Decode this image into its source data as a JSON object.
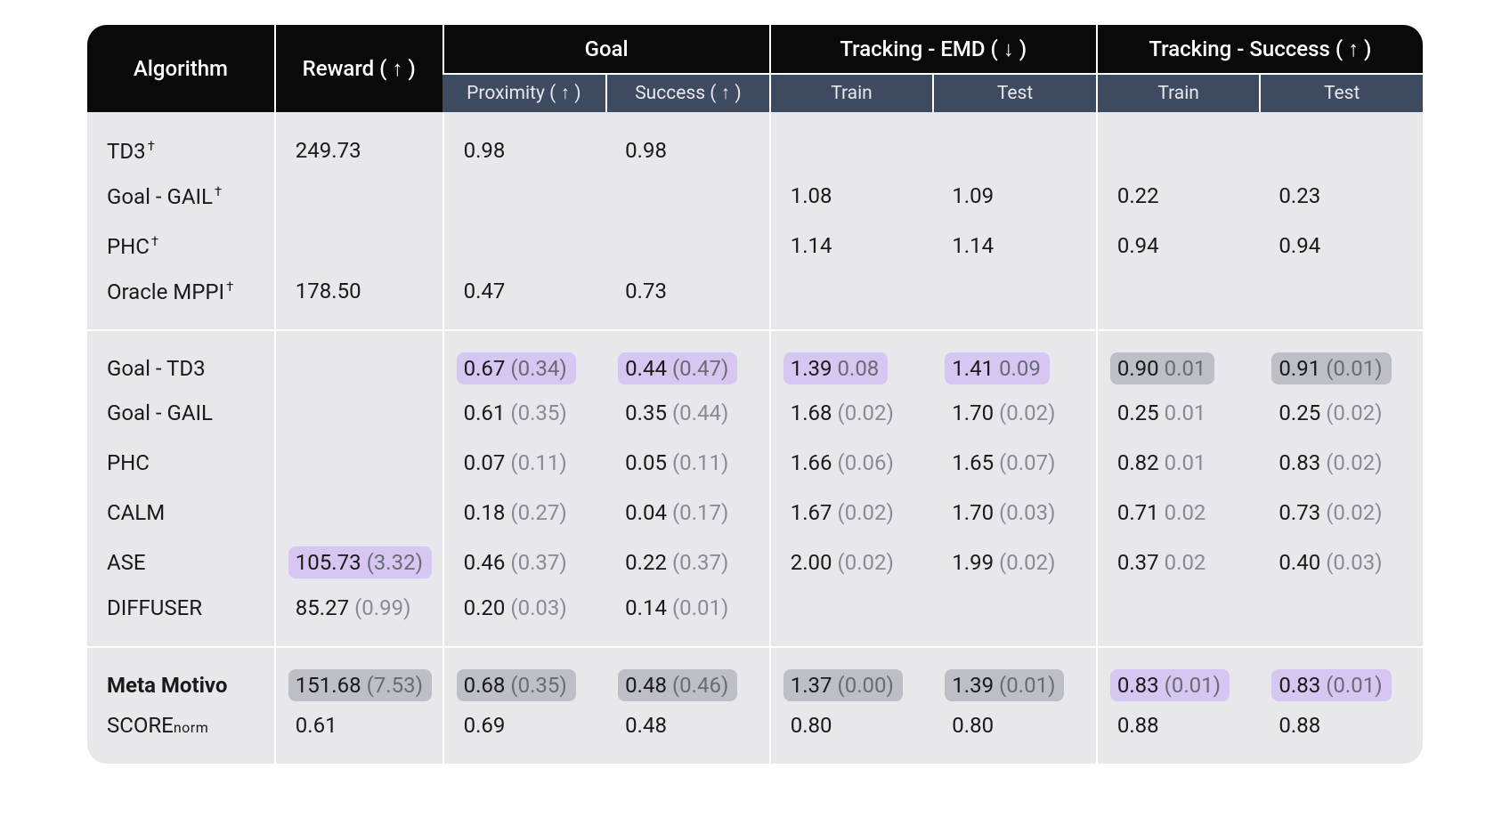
{
  "colors": {
    "header_bg": "#0a0a0a",
    "subheader_bg": "#3e4a5f",
    "body_bg": "#e8e8ec",
    "separator": "#ffffff",
    "text": "#1a1a1a",
    "std_text": "#8a8a92",
    "highlight_purple": "#d5c6f2",
    "highlight_gray": "#bdbec6"
  },
  "header": {
    "algorithm": "Algorithm",
    "reward": "Reward  ( ↑ )",
    "goal": "Goal",
    "goal_proximity": "Proximity  ( ↑ )",
    "goal_success": "Success  ( ↑ )",
    "tracking_emd": "Tracking - EMD  ( ↓ )",
    "tracking_success": "Tracking - Success  ( ↑ )",
    "train": "Train",
    "test": "Test"
  },
  "groups": [
    {
      "rows": [
        {
          "alg": "TD3",
          "dagger": true,
          "reward": {
            "v": "249.73"
          },
          "prox": {
            "v": "0.98"
          },
          "succ": {
            "v": "0.98"
          }
        },
        {
          "alg": "Goal - GAIL",
          "dagger": true,
          "emd_tr": {
            "v": "1.08"
          },
          "emd_te": {
            "v": "1.09"
          },
          "ts_tr": {
            "v": "0.22"
          },
          "ts_te": {
            "v": "0.23"
          }
        },
        {
          "alg": "PHC",
          "dagger": true,
          "emd_tr": {
            "v": "1.14"
          },
          "emd_te": {
            "v": "1.14"
          },
          "ts_tr": {
            "v": "0.94"
          },
          "ts_te": {
            "v": "0.94"
          }
        },
        {
          "alg": "Oracle MPPI",
          "dagger": true,
          "reward": {
            "v": "178.50"
          },
          "prox": {
            "v": "0.47"
          },
          "succ": {
            "v": "0.73"
          }
        }
      ]
    },
    {
      "rows": [
        {
          "alg": "Goal - TD3",
          "prox": {
            "v": "0.67",
            "s": "(0.34)",
            "hl": "purple"
          },
          "succ": {
            "v": "0.44",
            "s": "(0.47)",
            "hl": "purple"
          },
          "emd_tr": {
            "v": "1.39",
            "s": "0.08",
            "hl": "purple"
          },
          "emd_te": {
            "v": "1.41",
            "s": "0.09",
            "hl": "purple"
          },
          "ts_tr": {
            "v": "0.90",
            "s": "0.01",
            "hl": "gray"
          },
          "ts_te": {
            "v": "0.91",
            "s": "(0.01)",
            "hl": "gray"
          }
        },
        {
          "alg": "Goal - GAIL",
          "prox": {
            "v": "0.61",
            "s": "(0.35)"
          },
          "succ": {
            "v": "0.35",
            "s": "(0.44)"
          },
          "emd_tr": {
            "v": "1.68",
            "s": "(0.02)"
          },
          "emd_te": {
            "v": "1.70",
            "s": "(0.02)"
          },
          "ts_tr": {
            "v": "0.25",
            "s": "0.01"
          },
          "ts_te": {
            "v": "0.25",
            "s": "(0.02)"
          }
        },
        {
          "alg": "PHC",
          "prox": {
            "v": "0.07",
            "s": "(0.11)"
          },
          "succ": {
            "v": "0.05",
            "s": "(0.11)"
          },
          "emd_tr": {
            "v": "1.66",
            "s": "(0.06)"
          },
          "emd_te": {
            "v": "1.65",
            "s": "(0.07)"
          },
          "ts_tr": {
            "v": "0.82",
            "s": "0.01"
          },
          "ts_te": {
            "v": "0.83",
            "s": "(0.02)"
          }
        },
        {
          "alg": "CALM",
          "prox": {
            "v": "0.18",
            "s": "(0.27)"
          },
          "succ": {
            "v": "0.04",
            "s": "(0.17)"
          },
          "emd_tr": {
            "v": "1.67",
            "s": "(0.02)"
          },
          "emd_te": {
            "v": "1.70",
            "s": "(0.03)"
          },
          "ts_tr": {
            "v": "0.71",
            "s": "0.02"
          },
          "ts_te": {
            "v": "0.73",
            "s": "(0.02)"
          }
        },
        {
          "alg": "ASE",
          "reward": {
            "v": "105.73",
            "s": "(3.32)",
            "hl": "purple"
          },
          "prox": {
            "v": "0.46",
            "s": "(0.37)"
          },
          "succ": {
            "v": "0.22",
            "s": "(0.37)"
          },
          "emd_tr": {
            "v": "2.00",
            "s": "(0.02)"
          },
          "emd_te": {
            "v": "1.99",
            "s": "(0.02)"
          },
          "ts_tr": {
            "v": "0.37",
            "s": "0.02"
          },
          "ts_te": {
            "v": "0.40",
            "s": "(0.03)"
          }
        },
        {
          "alg": "DIFFUSER",
          "reward": {
            "v": "85.27",
            "s": "(0.99)"
          },
          "prox": {
            "v": "0.20",
            "s": "(0.03)"
          },
          "succ": {
            "v": "0.14",
            "s": "(0.01)"
          }
        }
      ]
    },
    {
      "rows": [
        {
          "alg": "Meta Motivo",
          "bold": true,
          "reward": {
            "v": "151.68",
            "s": "(7.53)",
            "hl": "gray"
          },
          "prox": {
            "v": "0.68",
            "s": "(0.35)",
            "hl": "gray"
          },
          "succ": {
            "v": "0.48",
            "s": "(0.46)",
            "hl": "gray"
          },
          "emd_tr": {
            "v": "1.37",
            "s": "(0.00)",
            "hl": "gray"
          },
          "emd_te": {
            "v": "1.39",
            "s": "(0.01)",
            "hl": "gray"
          },
          "ts_tr": {
            "v": "0.83",
            "s": "(0.01)",
            "hl": "purple"
          },
          "ts_te": {
            "v": "0.83",
            "s": "(0.01)",
            "hl": "purple"
          }
        },
        {
          "alg": "SCOREnorm",
          "norm_suffix": true,
          "reward": {
            "v": "0.61"
          },
          "prox": {
            "v": "0.69"
          },
          "succ": {
            "v": "0.48"
          },
          "emd_tr": {
            "v": "0.80"
          },
          "emd_te": {
            "v": "0.80"
          },
          "ts_tr": {
            "v": "0.88"
          },
          "ts_te": {
            "v": "0.88"
          }
        }
      ]
    }
  ]
}
